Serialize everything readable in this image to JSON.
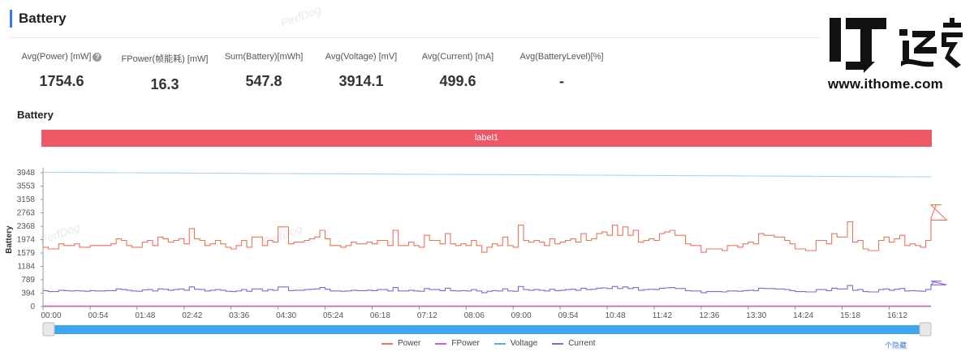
{
  "header": {
    "title": "Battery"
  },
  "watermark": "PerfDog",
  "metrics": [
    {
      "label": "Avg(Power) [mW]",
      "value": "1754.6",
      "has_help": true
    },
    {
      "label": "FPower(帧能耗) [mW]",
      "value": "16.3"
    },
    {
      "label": "Sum(Battery)[mWh]",
      "value": "547.8"
    },
    {
      "label": "Avg(Voltage) [mV]",
      "value": "3914.1"
    },
    {
      "label": "Avg(Current) [mA]",
      "value": "499.6"
    },
    {
      "label": "Avg(BatteryLevel)[%]",
      "value": "-"
    }
  ],
  "logo": {
    "mark": "IT之家",
    "site": "www.ithome.com"
  },
  "chart_title": "Battery",
  "label_bar": "label1",
  "footer_link": "个隐藏",
  "colors": {
    "power": "#e8765a",
    "fpower": "#d957c8",
    "voltage": "#a9d3f2",
    "current": "#8a63d8",
    "scroll": "#3ea6ee",
    "label": "#ee5765"
  },
  "chart_data": {
    "type": "line",
    "ylabel": "Battery",
    "y_ticks": [
      "0",
      "394",
      "789",
      "1184",
      "1579",
      "1974",
      "2368",
      "2763",
      "3158",
      "3553",
      "3948"
    ],
    "ylim": [
      0,
      3948
    ],
    "x_ticks": [
      "00:00",
      "00:54",
      "01:48",
      "02:42",
      "03:36",
      "04:30",
      "05:24",
      "06:18",
      "07:12",
      "08:06",
      "09:00",
      "09:54",
      "10:48",
      "11:42",
      "12:36",
      "13:30",
      "14:24",
      "15:18",
      "16:12"
    ],
    "x_tick_seconds": [
      0,
      54,
      108,
      162,
      216,
      270,
      324,
      378,
      432,
      486,
      540,
      594,
      648,
      702,
      756,
      810,
      864,
      918,
      972
    ],
    "xlim_seconds": [
      0,
      1020
    ],
    "step_seconds": 6,
    "grid": false,
    "legend_position": "bottom",
    "series": [
      {
        "name": "Power",
        "color": "#e8765a",
        "values": [
          1750,
          1700,
          1700,
          1850,
          1800,
          1800,
          1850,
          1750,
          1750,
          1800,
          1800,
          1800,
          1800,
          1850,
          2000,
          1950,
          1800,
          1750,
          1750,
          1900,
          1950,
          1800,
          2050,
          2000,
          1900,
          1950,
          2000,
          1850,
          2300,
          2000,
          1950,
          1800,
          1850,
          1950,
          1850,
          1750,
          1700,
          1800,
          1950,
          1750,
          2050,
          2050,
          1800,
          1950,
          1900,
          2350,
          2350,
          1850,
          1900,
          1900,
          1950,
          2000,
          2050,
          2250,
          2000,
          1800,
          1800,
          1750,
          1800,
          1900,
          1850,
          1850,
          1900,
          1850,
          1950,
          1950,
          1800,
          2250,
          1800,
          1800,
          1900,
          1800,
          1750,
          2100,
          1950,
          1950,
          1850,
          2150,
          1850,
          1800,
          1850,
          1800,
          1950,
          1800,
          1600,
          1750,
          1850,
          1800,
          2050,
          1800,
          1750,
          2400,
          1950,
          1900,
          1950,
          1900,
          1800,
          2000,
          1850,
          1900,
          1950,
          2000,
          1900,
          2150,
          1950,
          2000,
          2150,
          2200,
          2100,
          2400,
          2100,
          2350,
          2100,
          2250,
          1900,
          1950,
          2000,
          1950,
          2150,
          2200,
          2250,
          2100,
          2100,
          1850,
          1800,
          1800,
          1600,
          1700,
          1700,
          1700,
          1650,
          1800,
          1800,
          1750,
          1850,
          1900,
          1850,
          2150,
          2100,
          2100,
          2050,
          2050,
          1950,
          1850,
          1700,
          1700,
          1650,
          1650,
          1950,
          1950,
          1850,
          2150,
          2050,
          2050,
          2500,
          1900,
          1950,
          1700,
          1650,
          1650,
          1950,
          2050,
          1900,
          2000,
          2100,
          1800,
          1850,
          1800,
          1750,
          1950,
          2600,
          3000,
          3000,
          2550
        ]
      },
      {
        "name": "FPower",
        "color": "#d957c8",
        "values": [
          16,
          16,
          16,
          16,
          16,
          16,
          16,
          16,
          16,
          16,
          16,
          16,
          16,
          16,
          16,
          16,
          16,
          16,
          16,
          16,
          16,
          16,
          16,
          16,
          16,
          16,
          16,
          16,
          16,
          16,
          16,
          16,
          16,
          16,
          16,
          16,
          16,
          16,
          16,
          16,
          16,
          16,
          16,
          16,
          16,
          16,
          16,
          16,
          16,
          16,
          16,
          16,
          16,
          16,
          16,
          16,
          16,
          16,
          16,
          16,
          16,
          16,
          16,
          16,
          16,
          16,
          16,
          16,
          16,
          16,
          16,
          16,
          16,
          16,
          16,
          16,
          16,
          16,
          16,
          16,
          16,
          16,
          16,
          16,
          16,
          16,
          16,
          16,
          16,
          16,
          16,
          16,
          16,
          16,
          16,
          16,
          16,
          16,
          16,
          16,
          16,
          16,
          16,
          16,
          16,
          16,
          16,
          16,
          16,
          16,
          16,
          16,
          16,
          16,
          16,
          16,
          16,
          16,
          16,
          16,
          16,
          16,
          16,
          16,
          16,
          16,
          16,
          16,
          16,
          16,
          16,
          16,
          16,
          16,
          16,
          16,
          16,
          16,
          16,
          16,
          16,
          16,
          16,
          16,
          16,
          16,
          16,
          16,
          16,
          16,
          16,
          16,
          16,
          16,
          16,
          16,
          16,
          16,
          16,
          16,
          16,
          16,
          16,
          16,
          16,
          16,
          16,
          16,
          16,
          16,
          16
        ]
      },
      {
        "name": "Voltage",
        "color": "#a9d3f2",
        "values": [
          3960,
          3960,
          3959,
          3958,
          3957,
          3957,
          3956,
          3955,
          3954,
          3953,
          3953,
          3952,
          3951,
          3950,
          3949,
          3949,
          3948,
          3947,
          3946,
          3945,
          3944,
          3944,
          3943,
          3942,
          3941,
          3940,
          3940,
          3939,
          3938,
          3937,
          3936,
          3936,
          3935,
          3934,
          3933,
          3932,
          3932,
          3931,
          3930,
          3929,
          3928,
          3928,
          3927,
          3926,
          3925,
          3924,
          3924,
          3923,
          3922,
          3921,
          3920,
          3920,
          3919,
          3918,
          3917,
          3916,
          3916,
          3915,
          3914,
          3913,
          3912,
          3912,
          3911,
          3910,
          3909,
          3908,
          3908,
          3907,
          3906,
          3905,
          3904,
          3904,
          3903,
          3902,
          3901,
          3900,
          3900,
          3899,
          3898,
          3897,
          3896,
          3896,
          3895,
          3894,
          3893,
          3892,
          3892,
          3891,
          3890,
          3889,
          3888,
          3888,
          3887,
          3886,
          3885,
          3884,
          3884,
          3883,
          3882,
          3881,
          3880,
          3880,
          3879,
          3878,
          3877,
          3876,
          3876,
          3875,
          3874,
          3873,
          3872,
          3872,
          3871,
          3870,
          3869,
          3868,
          3868,
          3867,
          3866,
          3865,
          3864,
          3864,
          3863,
          3862,
          3861,
          3860,
          3860,
          3859,
          3858,
          3857,
          3856,
          3856,
          3855,
          3854,
          3853,
          3852,
          3852,
          3851,
          3850,
          3849,
          3848,
          3848,
          3847,
          3846,
          3845,
          3844,
          3844,
          3843,
          3842,
          3841,
          3840,
          3840,
          3839,
          3838,
          3837,
          3836,
          3836,
          3835,
          3834,
          3833,
          3832,
          3832,
          3831,
          3830,
          3829,
          3828,
          3828,
          3827,
          3826,
          3825,
          3820
        ]
      },
      {
        "name": "Current",
        "color": "#8a63d8",
        "values": [
          470,
          440,
          440,
          480,
          470,
          460,
          470,
          460,
          450,
          470,
          460,
          460,
          470,
          470,
          520,
          500,
          480,
          460,
          450,
          490,
          500,
          460,
          520,
          510,
          480,
          500,
          520,
          480,
          580,
          510,
          500,
          460,
          480,
          500,
          480,
          450,
          440,
          460,
          500,
          450,
          520,
          520,
          460,
          500,
          480,
          580,
          580,
          470,
          480,
          480,
          500,
          510,
          520,
          560,
          510,
          460,
          460,
          450,
          460,
          480,
          470,
          470,
          480,
          470,
          500,
          500,
          460,
          560,
          460,
          460,
          480,
          460,
          450,
          530,
          500,
          500,
          470,
          540,
          470,
          460,
          470,
          460,
          500,
          460,
          410,
          450,
          470,
          460,
          520,
          460,
          450,
          590,
          500,
          480,
          500,
          480,
          460,
          510,
          470,
          480,
          500,
          510,
          480,
          540,
          500,
          510,
          540,
          550,
          530,
          590,
          530,
          580,
          530,
          560,
          480,
          500,
          510,
          500,
          540,
          550,
          560,
          530,
          530,
          470,
          460,
          460,
          410,
          440,
          440,
          440,
          430,
          460,
          460,
          450,
          470,
          480,
          470,
          540,
          530,
          530,
          520,
          520,
          500,
          470,
          440,
          440,
          430,
          430,
          500,
          500,
          470,
          540,
          520,
          520,
          620,
          480,
          500,
          440,
          430,
          430,
          500,
          520,
          480,
          510,
          530,
          460,
          470,
          460,
          450,
          500,
          650,
          750,
          750,
          640
        ]
      }
    ]
  }
}
